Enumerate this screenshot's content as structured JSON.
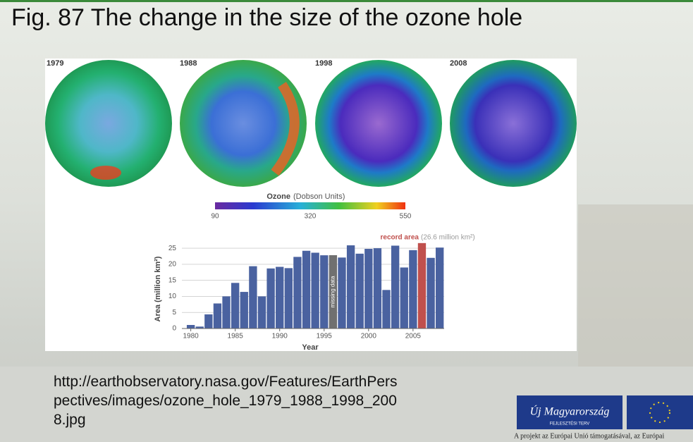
{
  "slide_title": "Fig. 87 The change in the size of the ozone hole",
  "maps": [
    {
      "label": "1979"
    },
    {
      "label": "1988"
    },
    {
      "label": "1998"
    },
    {
      "label": "2008"
    }
  ],
  "colorbar": {
    "title": "Ozone",
    "unit": "(Dobson Units)",
    "ticks": [
      "90",
      "320",
      "550"
    ]
  },
  "source_lines": [
    "http://earthobservatory.nasa.gov/Features/EarthPers",
    "pectives/images/ozone_hole_1979_1988_1998_200",
    "8.jpg"
  ],
  "logo": {
    "name": "Új Magyarország",
    "subtitle": "FEJLESZTÉSI TERV",
    "caption": "A projekt az Európai Unió támogatásával, az Európai"
  },
  "chart_data": {
    "type": "bar",
    "x_label": "Year",
    "y_label": "Area (million km²)",
    "x": [
      1980,
      1981,
      1982,
      1983,
      1984,
      1985,
      1986,
      1987,
      1988,
      1989,
      1990,
      1991,
      1992,
      1993,
      1994,
      1995,
      1996,
      1997,
      1998,
      1999,
      2000,
      2001,
      2002,
      2003,
      2004,
      2005,
      2006,
      2007,
      2008
    ],
    "values": [
      1.1,
      0.6,
      4.4,
      7.8,
      10.0,
      14.2,
      11.4,
      19.4,
      10.0,
      18.7,
      19.2,
      18.8,
      22.3,
      24.2,
      23.6,
      22.8,
      null,
      22.1,
      25.9,
      23.3,
      24.8,
      25.0,
      12.0,
      25.8,
      19.0,
      24.4,
      26.6,
      22.0,
      25.2
    ],
    "colors": [
      "#4a62a0",
      "#4a62a0",
      "#4a62a0",
      "#4a62a0",
      "#4a62a0",
      "#4a62a0",
      "#4a62a0",
      "#4a62a0",
      "#4a62a0",
      "#4a62a0",
      "#4a62a0",
      "#4a62a0",
      "#4a62a0",
      "#4a62a0",
      "#4a62a0",
      "#4a62a0",
      "#4a62a0",
      "#4a62a0",
      "#4a62a0",
      "#4a62a0",
      "#4a62a0",
      "#4a62a0",
      "#4a62a0",
      "#4a62a0",
      "#4a62a0",
      "#4a62a0",
      "#c0504d",
      "#4a62a0",
      "#4a62a0"
    ],
    "missing_label": "missing data",
    "missing_color": "#707070",
    "annotation": {
      "label": "record area",
      "detail": "(26.6 million km²)"
    },
    "xlim": [
      1979,
      2008.5
    ],
    "xticks": [
      1980,
      1985,
      1990,
      1995,
      2000,
      2005
    ],
    "ylim": [
      0,
      27
    ],
    "yticks": [
      0,
      5,
      10,
      15,
      20,
      25
    ],
    "grid": true
  }
}
